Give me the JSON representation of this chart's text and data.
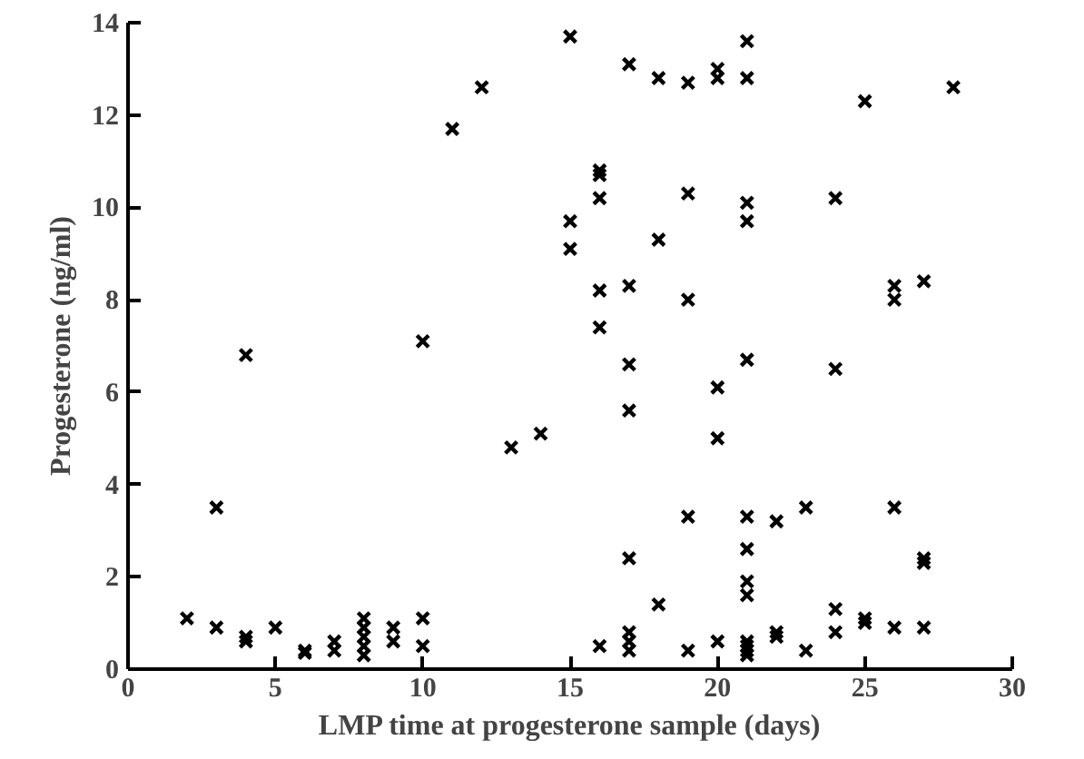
{
  "chart_data": {
    "type": "scatter",
    "xlabel": "LMP time at progesterone sample (days)",
    "ylabel": "Progesterone (ng/ml)",
    "xlim": [
      0,
      30
    ],
    "ylim": [
      0,
      14
    ],
    "xticks": [
      0,
      5,
      10,
      15,
      20,
      25,
      30
    ],
    "yticks": [
      0,
      2,
      4,
      6,
      8,
      10,
      12,
      14
    ],
    "grid": false,
    "marker": "cross",
    "series": [
      {
        "color": "#000000",
        "x": [
          2,
          3,
          3,
          4,
          4,
          4,
          5,
          6,
          6,
          7,
          7,
          8,
          8,
          8,
          8,
          8,
          9,
          9,
          10,
          10,
          10,
          11,
          12,
          13,
          14,
          15,
          15,
          15,
          16,
          16,
          16,
          16,
          16,
          16,
          17,
          17,
          17,
          17,
          17,
          17,
          17,
          17,
          18,
          18,
          18,
          19,
          19,
          19,
          19,
          19,
          20,
          20,
          20,
          20,
          20,
          21,
          21,
          21,
          21,
          21,
          21,
          21,
          21,
          21,
          21,
          21,
          21,
          21,
          22,
          22,
          22,
          23,
          23,
          24,
          24,
          24,
          24,
          25,
          25,
          25,
          26,
          26,
          26,
          26,
          27,
          27,
          27,
          27,
          28
        ],
        "values": [
          1.1,
          3.5,
          0.9,
          6.8,
          0.7,
          0.6,
          0.9,
          0.4,
          0.35,
          0.6,
          0.4,
          1.1,
          0.9,
          0.7,
          0.5,
          0.3,
          0.9,
          0.6,
          7.1,
          1.1,
          0.5,
          11.7,
          12.6,
          4.8,
          5.1,
          13.7,
          9.7,
          9.1,
          10.8,
          10.7,
          10.2,
          8.2,
          7.4,
          0.5,
          13.1,
          8.3,
          6.6,
          5.6,
          2.4,
          0.8,
          0.6,
          0.4,
          12.8,
          9.3,
          1.4,
          12.7,
          10.3,
          8.0,
          3.3,
          0.4,
          13.0,
          12.8,
          6.1,
          5.0,
          0.6,
          13.6,
          12.8,
          10.1,
          9.7,
          6.7,
          3.3,
          2.6,
          1.9,
          1.6,
          0.6,
          0.5,
          0.4,
          0.3,
          3.2,
          0.8,
          0.7,
          3.5,
          0.4,
          10.2,
          6.5,
          1.3,
          0.8,
          12.3,
          1.1,
          1.0,
          8.3,
          8.0,
          3.5,
          0.9,
          8.4,
          2.4,
          2.3,
          0.9,
          12.6
        ]
      }
    ]
  }
}
